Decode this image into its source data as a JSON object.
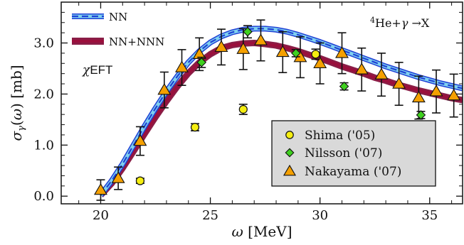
{
  "chart_data": {
    "type": "line",
    "title": "",
    "xlabel": "ω [MeV]",
    "ylabel": "σγ(ω) [mb]",
    "xlim": [
      18.2,
      36.5
    ],
    "ylim": [
      -0.15,
      3.8
    ],
    "x_ticks": [
      20,
      25,
      30,
      35
    ],
    "y_ticks": [
      0.0,
      1.0,
      2.0,
      3.0
    ],
    "x_tick_labels": [
      "20",
      "25",
      "30",
      "35"
    ],
    "y_tick_labels": [
      "0.0",
      "1.0",
      "2.0",
      "3.0"
    ],
    "annotations": {
      "reaction": "4He+γ →X",
      "method": "χEFT"
    },
    "legend_top_left": [
      "NN",
      "NN+NNN"
    ],
    "legend_bottom_right": [
      "Shima ('05)",
      "Nilsson ('07)",
      "Nakayama ('07)"
    ],
    "grid": false,
    "series": [
      {
        "name": "NN",
        "kind": "line",
        "style": "dashed-blue-lightblue-band",
        "color": "#1f3fd6",
        "band_color": "#7fd0ee",
        "x": [
          20.0,
          20.5,
          21.0,
          21.5,
          22.0,
          22.5,
          23.0,
          23.5,
          24.0,
          24.5,
          25.0,
          25.5,
          26.0,
          26.5,
          27.0,
          27.5,
          28.0,
          28.5,
          29.0,
          29.5,
          30.0,
          30.5,
          31.0,
          31.5,
          32.0,
          32.5,
          33.0,
          33.5,
          34.0,
          34.5,
          35.0,
          35.5,
          36.0,
          36.5
        ],
        "y": [
          0.02,
          0.3,
          0.63,
          1.0,
          1.37,
          1.72,
          2.05,
          2.35,
          2.62,
          2.84,
          3.01,
          3.13,
          3.21,
          3.26,
          3.28,
          3.28,
          3.26,
          3.22,
          3.16,
          3.09,
          3.02,
          2.94,
          2.86,
          2.78,
          2.7,
          2.62,
          2.54,
          2.47,
          2.4,
          2.33,
          2.27,
          2.21,
          2.16,
          2.11
        ]
      },
      {
        "name": "NN+NNN",
        "kind": "line",
        "style": "solid-crimson-band",
        "color": "#9b0f3c",
        "band_color": "#8a1d46",
        "x": [
          20.0,
          20.5,
          21.0,
          21.5,
          22.0,
          22.5,
          23.0,
          23.5,
          24.0,
          24.5,
          25.0,
          25.5,
          26.0,
          26.5,
          27.0,
          27.5,
          28.0,
          28.5,
          29.0,
          29.5,
          30.0,
          30.5,
          31.0,
          31.5,
          32.0,
          32.5,
          33.0,
          33.5,
          34.0,
          34.5,
          35.0,
          35.5,
          36.0,
          36.5
        ],
        "y": [
          0.02,
          0.25,
          0.55,
          0.88,
          1.22,
          1.55,
          1.86,
          2.15,
          2.41,
          2.62,
          2.78,
          2.9,
          2.96,
          2.99,
          3.0,
          2.98,
          2.95,
          2.9,
          2.84,
          2.77,
          2.7,
          2.62,
          2.54,
          2.47,
          2.4,
          2.32,
          2.26,
          2.19,
          2.13,
          2.07,
          2.02,
          1.97,
          1.92,
          1.88
        ]
      },
      {
        "name": "Shima ('05)",
        "kind": "points",
        "marker": "circle",
        "color": "#f5ee10",
        "points": [
          {
            "x": 21.8,
            "y": 0.3,
            "err": 0.05
          },
          {
            "x": 24.3,
            "y": 1.35,
            "err": 0.07
          },
          {
            "x": 26.5,
            "y": 1.7,
            "err": 0.1
          },
          {
            "x": 29.8,
            "y": 2.78,
            "err": 0.1
          }
        ]
      },
      {
        "name": "Nilsson ('07)",
        "kind": "points",
        "marker": "diamond",
        "color": "#3fd01f",
        "points": [
          {
            "x": 24.6,
            "y": 2.62,
            "err": 0.1
          },
          {
            "x": 26.7,
            "y": 3.22,
            "err": 0.12
          },
          {
            "x": 28.9,
            "y": 2.8,
            "err": 0.07
          },
          {
            "x": 31.1,
            "y": 2.15,
            "err": 0.07
          },
          {
            "x": 34.6,
            "y": 1.59,
            "err": 0.07
          }
        ]
      },
      {
        "name": "Nakayama ('07)",
        "kind": "points",
        "marker": "triangle",
        "color": "#f5a000",
        "points": [
          {
            "x": 20.0,
            "y": 0.12,
            "err": 0.2
          },
          {
            "x": 20.8,
            "y": 0.35,
            "err": 0.22
          },
          {
            "x": 21.8,
            "y": 1.08,
            "err": 0.28
          },
          {
            "x": 22.9,
            "y": 2.08,
            "err": 0.35
          },
          {
            "x": 23.7,
            "y": 2.52,
            "err": 0.35
          },
          {
            "x": 24.5,
            "y": 2.78,
            "err": 0.32
          },
          {
            "x": 25.5,
            "y": 2.92,
            "err": 0.35
          },
          {
            "x": 26.5,
            "y": 2.88,
            "err": 0.4
          },
          {
            "x": 27.3,
            "y": 3.05,
            "err": 0.4
          },
          {
            "x": 28.3,
            "y": 2.82,
            "err": 0.4
          },
          {
            "x": 29.1,
            "y": 2.72,
            "err": 0.4
          },
          {
            "x": 30.0,
            "y": 2.6,
            "err": 0.4
          },
          {
            "x": 31.0,
            "y": 2.8,
            "err": 0.4
          },
          {
            "x": 31.9,
            "y": 2.48,
            "err": 0.42
          },
          {
            "x": 32.8,
            "y": 2.38,
            "err": 0.42
          },
          {
            "x": 33.6,
            "y": 2.2,
            "err": 0.42
          },
          {
            "x": 34.5,
            "y": 1.93,
            "err": 0.42
          },
          {
            "x": 35.3,
            "y": 2.05,
            "err": 0.42
          },
          {
            "x": 36.1,
            "y": 1.97,
            "err": 0.42
          }
        ]
      }
    ]
  }
}
